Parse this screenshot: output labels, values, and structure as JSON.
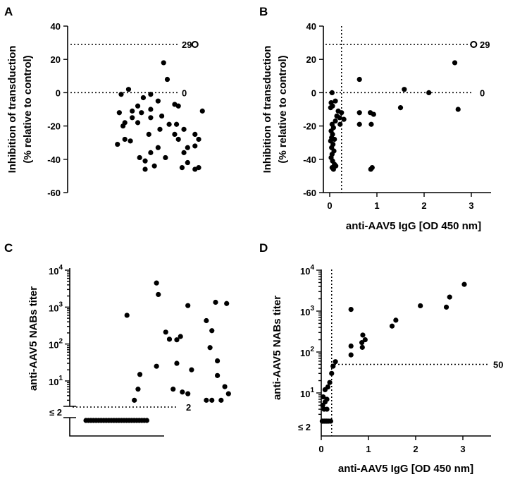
{
  "figure": {
    "panel_letters": [
      "A",
      "B",
      "C",
      "D"
    ]
  },
  "chart_data": [
    {
      "panel": "A",
      "type": "scatter",
      "title": "",
      "xlabel": "",
      "ylabel": "Inhibition of transduction\n(% relative to control)",
      "ylim": [
        -60,
        40
      ],
      "yticks": [
        -60,
        -40,
        -20,
        0,
        20,
        40
      ],
      "reference_lines": [
        {
          "orientation": "horizontal",
          "value": 29,
          "label": "29"
        },
        {
          "orientation": "horizontal",
          "value": 0,
          "label": "0"
        }
      ],
      "points": [
        {
          "x": 0.69,
          "y": 29,
          "open": true
        },
        {
          "x": 0.52,
          "y": 18
        },
        {
          "x": 0.54,
          "y": 8
        },
        {
          "x": 0.33,
          "y": 2
        },
        {
          "x": 0.29,
          "y": -1
        },
        {
          "x": 0.45,
          "y": -1
        },
        {
          "x": 0.41,
          "y": -3
        },
        {
          "x": 0.49,
          "y": -5
        },
        {
          "x": 0.38,
          "y": -8
        },
        {
          "x": 0.58,
          "y": -7
        },
        {
          "x": 0.6,
          "y": -8
        },
        {
          "x": 0.45,
          "y": -10
        },
        {
          "x": 0.28,
          "y": -12
        },
        {
          "x": 0.35,
          "y": -11
        },
        {
          "x": 0.4,
          "y": -12
        },
        {
          "x": 0.73,
          "y": -11
        },
        {
          "x": 0.35,
          "y": -15
        },
        {
          "x": 0.45,
          "y": -15
        },
        {
          "x": 0.51,
          "y": -14
        },
        {
          "x": 0.31,
          "y": -18
        },
        {
          "x": 0.38,
          "y": -18
        },
        {
          "x": 0.55,
          "y": -19
        },
        {
          "x": 0.59,
          "y": -19
        },
        {
          "x": 0.3,
          "y": -20
        },
        {
          "x": 0.5,
          "y": -22
        },
        {
          "x": 0.63,
          "y": -22
        },
        {
          "x": 0.44,
          "y": -25
        },
        {
          "x": 0.58,
          "y": -25
        },
        {
          "x": 0.69,
          "y": -25
        },
        {
          "x": 0.31,
          "y": -28
        },
        {
          "x": 0.34,
          "y": -29
        },
        {
          "x": 0.6,
          "y": -28
        },
        {
          "x": 0.71,
          "y": -28
        },
        {
          "x": 0.27,
          "y": -31
        },
        {
          "x": 0.49,
          "y": -33
        },
        {
          "x": 0.65,
          "y": -33
        },
        {
          "x": 0.69,
          "y": -32
        },
        {
          "x": 0.45,
          "y": -36
        },
        {
          "x": 0.63,
          "y": -36
        },
        {
          "x": 0.53,
          "y": -39
        },
        {
          "x": 0.39,
          "y": -39
        },
        {
          "x": 0.42,
          "y": -41
        },
        {
          "x": 0.65,
          "y": -42
        },
        {
          "x": 0.62,
          "y": -45
        },
        {
          "x": 0.47,
          "y": -44
        },
        {
          "x": 0.42,
          "y": -46
        },
        {
          "x": 0.69,
          "y": -46
        },
        {
          "x": 0.71,
          "y": -45
        }
      ]
    },
    {
      "panel": "B",
      "type": "scatter",
      "title": "",
      "xlabel": "anti-AAV5 IgG [OD 450 nm]",
      "ylabel": "Inhibition of transduction\n(% relative to control)",
      "xlim": [
        0,
        3.5
      ],
      "xticks": [
        0,
        1,
        2,
        3
      ],
      "ylim": [
        -60,
        40
      ],
      "yticks": [
        -60,
        -40,
        -20,
        0,
        20,
        40
      ],
      "reference_lines": [
        {
          "orientation": "horizontal",
          "value": 29,
          "label": "29"
        },
        {
          "orientation": "horizontal",
          "value": 0,
          "label": "0"
        },
        {
          "orientation": "vertical",
          "value": 0.25,
          "label": ""
        }
      ],
      "points": [
        {
          "x": 3.05,
          "y": 29,
          "open": true
        },
        {
          "x": 2.65,
          "y": 18
        },
        {
          "x": 2.72,
          "y": -10
        },
        {
          "x": 2.1,
          "y": 0
        },
        {
          "x": 1.58,
          "y": 2
        },
        {
          "x": 1.5,
          "y": -9
        },
        {
          "x": 0.63,
          "y": 8
        },
        {
          "x": 0.63,
          "y": -12
        },
        {
          "x": 0.63,
          "y": -19
        },
        {
          "x": 0.86,
          "y": -12
        },
        {
          "x": 0.93,
          "y": -13
        },
        {
          "x": 0.88,
          "y": -19
        },
        {
          "x": 0.87,
          "y": -46
        },
        {
          "x": 0.9,
          "y": -45
        },
        {
          "x": 0.05,
          "y": 0
        },
        {
          "x": 0.12,
          "y": -5
        },
        {
          "x": 0.03,
          "y": -6
        },
        {
          "x": 0.06,
          "y": -8
        },
        {
          "x": 0.02,
          "y": -9
        },
        {
          "x": 0.18,
          "y": -11
        },
        {
          "x": 0.25,
          "y": -12
        },
        {
          "x": 0.15,
          "y": -14
        },
        {
          "x": 0.21,
          "y": -15
        },
        {
          "x": 0.3,
          "y": -16
        },
        {
          "x": 0.12,
          "y": -17
        },
        {
          "x": 0.22,
          "y": -19
        },
        {
          "x": 0.05,
          "y": -19
        },
        {
          "x": 0.08,
          "y": -21
        },
        {
          "x": 0.03,
          "y": -23
        },
        {
          "x": 0.06,
          "y": -25
        },
        {
          "x": 0.04,
          "y": -27
        },
        {
          "x": 0.1,
          "y": -28
        },
        {
          "x": 0.02,
          "y": -29
        },
        {
          "x": 0.07,
          "y": -31
        },
        {
          "x": 0.04,
          "y": -33
        },
        {
          "x": 0.09,
          "y": -35
        },
        {
          "x": 0.05,
          "y": -37
        },
        {
          "x": 0.03,
          "y": -39
        },
        {
          "x": 0.06,
          "y": -41
        },
        {
          "x": 0.1,
          "y": -43
        },
        {
          "x": 0.05,
          "y": -45
        },
        {
          "x": 0.13,
          "y": -44
        },
        {
          "x": 0.08,
          "y": -46
        }
      ]
    },
    {
      "panel": "C",
      "type": "scatter",
      "title": "",
      "xlabel": "",
      "ylabel": "anti-AAV5 NABs titer",
      "yscale": "log",
      "ylim": [
        2,
        10000
      ],
      "ytick_labels": [
        {
          "value": 10,
          "base": "10",
          "exp": "1"
        },
        {
          "value": 100,
          "base": "10",
          "exp": "2"
        },
        {
          "value": 1000,
          "base": "10",
          "exp": "3"
        },
        {
          "value": 10000,
          "base": "10",
          "exp": "4"
        }
      ],
      "below_limit_label": "≤ 2",
      "reference_lines": [
        {
          "orientation": "horizontal",
          "value": 2,
          "label": "2"
        }
      ],
      "points": [
        {
          "x": 0.47,
          "y": 4500
        },
        {
          "x": 0.48,
          "y": 2200
        },
        {
          "x": 0.79,
          "y": 1350
        },
        {
          "x": 0.85,
          "y": 1250
        },
        {
          "x": 0.64,
          "y": 1100
        },
        {
          "x": 0.31,
          "y": 600
        },
        {
          "x": 0.74,
          "y": 430
        },
        {
          "x": 0.52,
          "y": 210
        },
        {
          "x": 0.6,
          "y": 160
        },
        {
          "x": 0.77,
          "y": 230
        },
        {
          "x": 0.54,
          "y": 135
        },
        {
          "x": 0.58,
          "y": 130
        },
        {
          "x": 0.76,
          "y": 80
        },
        {
          "x": 0.8,
          "y": 35
        },
        {
          "x": 0.58,
          "y": 30
        },
        {
          "x": 0.47,
          "y": 25
        },
        {
          "x": 0.66,
          "y": 20
        },
        {
          "x": 0.38,
          "y": 15
        },
        {
          "x": 0.8,
          "y": 14
        },
        {
          "x": 0.37,
          "y": 6
        },
        {
          "x": 0.56,
          "y": 6
        },
        {
          "x": 0.84,
          "y": 7
        },
        {
          "x": 0.61,
          "y": 5
        },
        {
          "x": 0.64,
          "y": 4.5
        },
        {
          "x": 0.86,
          "y": 4.5
        },
        {
          "x": 0.35,
          "y": 3
        },
        {
          "x": 0.74,
          "y": 3
        },
        {
          "x": 0.77,
          "y": 3
        },
        {
          "x": 0.82,
          "y": 3
        }
      ],
      "below_limit_count": 25
    },
    {
      "panel": "D",
      "type": "scatter",
      "title": "",
      "xlabel": "anti-AAV5 IgG [OD 450 nm]",
      "ylabel": "anti-AAV5 NABs titer",
      "xlim": [
        0,
        3.5
      ],
      "xticks": [
        0,
        1,
        2,
        3
      ],
      "yscale": "log",
      "ylim": [
        2,
        10000
      ],
      "ytick_labels": [
        {
          "value": 10,
          "base": "10",
          "exp": "1"
        },
        {
          "value": 100,
          "base": "10",
          "exp": "2"
        },
        {
          "value": 1000,
          "base": "10",
          "exp": "3"
        },
        {
          "value": 10000,
          "base": "10",
          "exp": "4"
        }
      ],
      "below_limit_label": "≤ 2",
      "reference_lines": [
        {
          "orientation": "horizontal",
          "value": 50,
          "label": "50"
        },
        {
          "orientation": "vertical",
          "value": 0.22,
          "label": ""
        }
      ],
      "points": [
        {
          "x": 3.03,
          "y": 4500
        },
        {
          "x": 2.72,
          "y": 2200
        },
        {
          "x": 2.65,
          "y": 1250
        },
        {
          "x": 2.1,
          "y": 1350
        },
        {
          "x": 0.63,
          "y": 1100
        },
        {
          "x": 1.58,
          "y": 600
        },
        {
          "x": 1.5,
          "y": 430
        },
        {
          "x": 0.88,
          "y": 260
        },
        {
          "x": 0.93,
          "y": 200
        },
        {
          "x": 0.86,
          "y": 170
        },
        {
          "x": 0.87,
          "y": 130
        },
        {
          "x": 0.63,
          "y": 140
        },
        {
          "x": 0.63,
          "y": 85
        },
        {
          "x": 0.3,
          "y": 58
        },
        {
          "x": 0.25,
          "y": 45
        },
        {
          "x": 0.22,
          "y": 30
        },
        {
          "x": 0.18,
          "y": 18
        },
        {
          "x": 0.14,
          "y": 14
        },
        {
          "x": 0.08,
          "y": 12
        },
        {
          "x": 0.04,
          "y": 8
        },
        {
          "x": 0.12,
          "y": 7
        },
        {
          "x": 0.08,
          "y": 6
        },
        {
          "x": 0.03,
          "y": 5
        },
        {
          "x": 0.06,
          "y": 4
        },
        {
          "x": 0.12,
          "y": 4
        }
      ],
      "below_limit_x": [
        0.02,
        0.04,
        0.06,
        0.08,
        0.1,
        0.12,
        0.14,
        0.16,
        0.2,
        0.03,
        0.07,
        0.11
      ]
    }
  ]
}
